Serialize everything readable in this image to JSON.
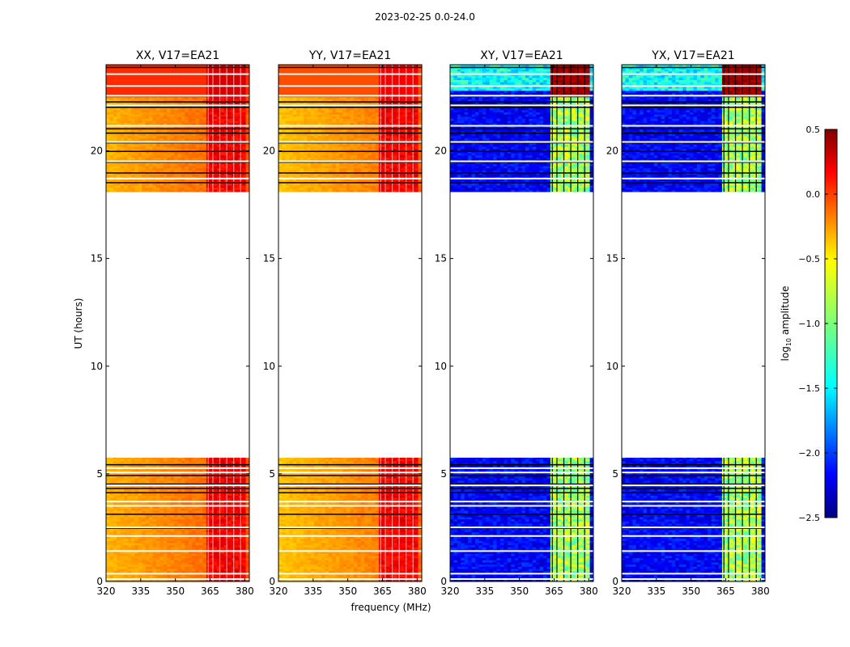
{
  "figure": {
    "suptitle": "2023-02-25 0.0-24.0",
    "ylabel": "UT (hours)",
    "xlabel": "frequency (MHz)",
    "colorbar_label_prefix": "log",
    "colorbar_label_sub": "10",
    "colorbar_label_suffix": " amplitude"
  },
  "chart_data": {
    "type": "heatmap",
    "colormap": "jet",
    "x_range_mhz": [
      320,
      382
    ],
    "y_range_hours": [
      0,
      24
    ],
    "xticks": [
      320,
      335,
      350,
      365,
      380
    ],
    "xtick_labels": [
      "320",
      "335",
      "350",
      "365",
      "380"
    ],
    "yticks": [
      0,
      5,
      10,
      15,
      20
    ],
    "ytick_labels": [
      "0",
      "5",
      "10",
      "15",
      "20"
    ],
    "colorbar_range": [
      -2.5,
      0.5
    ],
    "colorbar_ticks": [
      0.5,
      0.0,
      -0.5,
      -1.0,
      -1.5,
      -2.0,
      -2.5
    ],
    "colorbar_tick_labels": [
      "0.5",
      "0.0",
      "−0.5",
      "−1.0",
      "−1.5",
      "−2.0",
      "−2.5"
    ],
    "data_windows_hours": [
      [
        0,
        5.75
      ],
      [
        18.1,
        24
      ]
    ],
    "rfi_band_mhz": [
      363,
      380
    ],
    "panels": [
      {
        "title": "XX, V17=EA21",
        "pol": "XX",
        "base_level": -0.4,
        "band_level": 0.15,
        "night_level": -0.2
      },
      {
        "title": "YY, V17=EA21",
        "pol": "YY",
        "base_level": -0.45,
        "band_level": 0.15,
        "night_level": -0.3
      },
      {
        "title": "XY, V17=EA21",
        "pol": "XY",
        "base_level": -2.3,
        "band_level": -0.9,
        "night_level": 0.5
      },
      {
        "title": "YX, V17=EA21",
        "pol": "YX",
        "base_level": -2.3,
        "band_level": -0.9,
        "night_level": 0.5
      }
    ]
  }
}
